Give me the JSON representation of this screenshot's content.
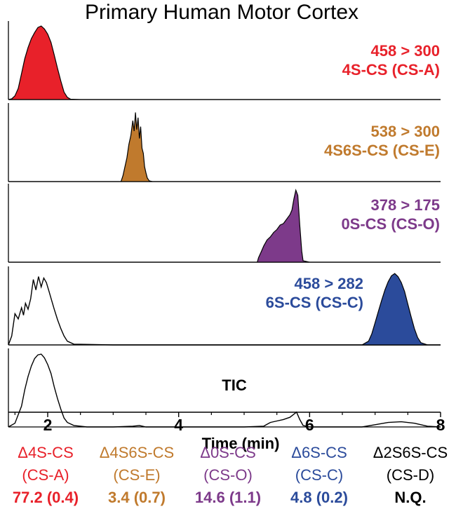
{
  "chart_data": {
    "type": "line",
    "title": "Primary Human Motor Cortex",
    "xlabel": "Time (min)",
    "xlim": [
      1.4,
      8.0
    ],
    "xticks": [
      2,
      4,
      6,
      8
    ],
    "xtick_labels": [
      "2",
      "4",
      "6",
      "8"
    ],
    "panels": [
      {
        "id": "cs-a",
        "transition": "458 > 300",
        "compound": "4S-CS (CS-A)",
        "color": "#e8212a",
        "filled": true,
        "ylim": [
          0,
          1.0
        ],
        "x": [
          1.4,
          1.45,
          1.5,
          1.55,
          1.6,
          1.65,
          1.7,
          1.75,
          1.8,
          1.85,
          1.9,
          1.95,
          2.0,
          2.05,
          2.1,
          2.15,
          2.2,
          2.25,
          2.3,
          2.35,
          2.5,
          3.0,
          4.0,
          5.0,
          6.0,
          7.0,
          8.0
        ],
        "y": [
          0.0,
          0.01,
          0.05,
          0.15,
          0.35,
          0.55,
          0.7,
          0.82,
          0.9,
          0.97,
          0.99,
          0.95,
          0.88,
          0.77,
          0.6,
          0.42,
          0.25,
          0.1,
          0.03,
          0.005,
          0.0,
          0.0,
          0.0,
          0.0,
          0.0,
          0.0,
          0.0
        ]
      },
      {
        "id": "cs-e",
        "transition": "538 > 300",
        "compound": "4S6S-CS (CS-E)",
        "color": "#c07a2d",
        "filled": true,
        "ylim": [
          0,
          1.0
        ],
        "x": [
          1.4,
          2.0,
          3.0,
          3.12,
          3.15,
          3.18,
          3.21,
          3.24,
          3.27,
          3.3,
          3.32,
          3.34,
          3.36,
          3.38,
          3.4,
          3.42,
          3.44,
          3.46,
          3.48,
          3.5,
          3.52,
          3.55,
          3.6,
          4.0,
          5.0,
          6.0,
          7.0,
          8.0
        ],
        "y": [
          0.0,
          0.0,
          0.0,
          0.0,
          0.08,
          0.2,
          0.32,
          0.5,
          0.62,
          0.82,
          0.68,
          0.93,
          0.7,
          0.86,
          0.58,
          0.74,
          0.45,
          0.38,
          0.2,
          0.12,
          0.05,
          0.01,
          0.0,
          0.0,
          0.0,
          0.0,
          0.0,
          0.0
        ]
      },
      {
        "id": "cs-o",
        "transition": "378 > 175",
        "compound": "0S-CS (CS-O)",
        "color": "#7d3a8a",
        "filled": true,
        "ylim": [
          0,
          1.0
        ],
        "x": [
          1.4,
          3.0,
          5.0,
          5.2,
          5.22,
          5.26,
          5.3,
          5.35,
          5.4,
          5.45,
          5.5,
          5.55,
          5.6,
          5.65,
          5.7,
          5.73,
          5.76,
          5.79,
          5.82,
          5.85,
          5.88,
          5.9,
          6.0,
          7.0,
          8.0
        ],
        "y": [
          0.0,
          0.0,
          0.0,
          0.0,
          0.06,
          0.14,
          0.22,
          0.3,
          0.34,
          0.4,
          0.44,
          0.5,
          0.52,
          0.58,
          0.64,
          0.7,
          0.85,
          0.97,
          0.9,
          0.5,
          0.15,
          0.02,
          0.0,
          0.0,
          0.0
        ]
      },
      {
        "id": "cs-c",
        "transition": "458 > 282",
        "compound": "6S-CS (CS-C)",
        "color": "#2b4b9b",
        "filled": true,
        "ylim": [
          0,
          1.0
        ],
        "x": [
          1.4,
          2.0,
          4.0,
          6.0,
          6.8,
          6.9,
          6.95,
          7.0,
          7.05,
          7.1,
          7.15,
          7.2,
          7.25,
          7.3,
          7.35,
          7.4,
          7.45,
          7.5,
          7.55,
          7.6,
          7.65,
          7.7,
          7.8,
          8.0
        ],
        "y": [
          0.0,
          0.0,
          0.0,
          0.0,
          0.0,
          0.05,
          0.15,
          0.3,
          0.45,
          0.6,
          0.74,
          0.85,
          0.93,
          0.96,
          0.92,
          0.84,
          0.72,
          0.55,
          0.38,
          0.22,
          0.1,
          0.03,
          0.0,
          0.0
        ],
        "trace_x": [
          1.4,
          1.45,
          1.5,
          1.55,
          1.6,
          1.63,
          1.66,
          1.7,
          1.74,
          1.78,
          1.82,
          1.86,
          1.9,
          1.94,
          1.98,
          2.02,
          2.06,
          2.1,
          2.15,
          2.2,
          2.25,
          2.3,
          2.4,
          3.0,
          4.0,
          5.0,
          6.0,
          8.0
        ],
        "trace_y": [
          0.0,
          0.12,
          0.42,
          0.35,
          0.5,
          0.4,
          0.56,
          0.48,
          0.62,
          0.88,
          0.74,
          0.92,
          0.78,
          0.9,
          0.84,
          0.72,
          0.6,
          0.48,
          0.34,
          0.22,
          0.12,
          0.05,
          0.01,
          0.0,
          0.0,
          0.0,
          0.0,
          0.0
        ],
        "trace_color": "#000000"
      },
      {
        "id": "tic",
        "transition": "TIC",
        "compound": "",
        "color": "#000000",
        "filled": false,
        "ylim": [
          0,
          1.0
        ],
        "x": [
          1.4,
          1.5,
          1.6,
          1.65,
          1.7,
          1.75,
          1.8,
          1.85,
          1.9,
          1.95,
          2.0,
          2.05,
          2.1,
          2.15,
          2.2,
          2.25,
          2.3,
          2.4,
          2.6,
          3.0,
          3.3,
          3.4,
          3.5,
          4.0,
          5.0,
          5.3,
          5.4,
          5.5,
          5.6,
          5.7,
          5.8,
          5.85,
          5.9,
          6.0,
          6.5,
          6.8,
          7.0,
          7.2,
          7.4,
          7.6,
          7.8,
          8.0
        ],
        "y": [
          0.0,
          0.05,
          0.28,
          0.5,
          0.68,
          0.82,
          0.92,
          0.97,
          0.98,
          0.93,
          0.84,
          0.72,
          0.54,
          0.38,
          0.24,
          0.12,
          0.06,
          0.02,
          0.0,
          0.0,
          0.01,
          0.02,
          0.0,
          0.0,
          0.0,
          0.01,
          0.06,
          0.08,
          0.1,
          0.13,
          0.2,
          0.1,
          0.02,
          0.0,
          0.0,
          0.0,
          0.03,
          0.06,
          0.07,
          0.05,
          0.01,
          0.0
        ]
      }
    ],
    "legend": [
      {
        "name": "Δ4S-CS",
        "abbr": "(CS-A)",
        "value": "77.2 (0.4)",
        "color": "#e8212a"
      },
      {
        "name": "Δ4S6S-CS",
        "abbr": "(CS-E)",
        "value": "3.4 (0.7)",
        "color": "#c07a2d"
      },
      {
        "name": "Δ0S-CS",
        "abbr": "(CS-O)",
        "value": "14.6 (1.1)",
        "color": "#7d3a8a"
      },
      {
        "name": "Δ6S-CS",
        "abbr": "(CS-C)",
        "value": "4.8 (0.2)",
        "color": "#2b4b9b"
      },
      {
        "name": "Δ2S6S-CS",
        "abbr": "(CS-D)",
        "value": "N.Q.",
        "color": "#000000"
      }
    ]
  }
}
